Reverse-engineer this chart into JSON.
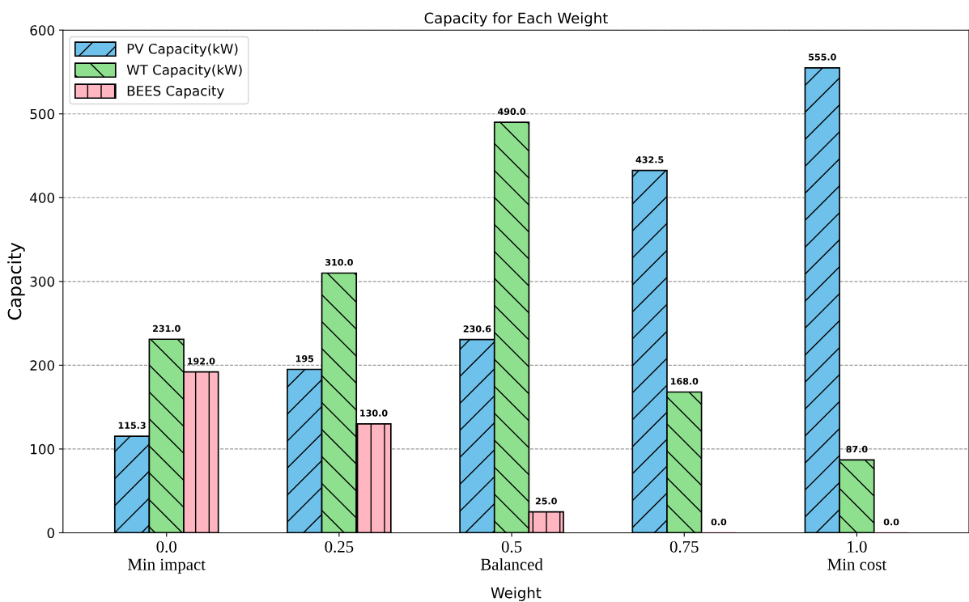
{
  "chart_data": {
    "type": "bar",
    "title": "Capacity for Each Weight",
    "xlabel": "Weight",
    "ylabel": "Capacity",
    "categories": [
      "0.0\nMin impact",
      "0.25",
      "0.5\nBalanced",
      "0.75",
      "1.0\nMin cost"
    ],
    "series": [
      {
        "name": "PV Capacity(kW)",
        "color": "#6ec1ea",
        "values": [
          115.3,
          195,
          230.6,
          432.5,
          555.0
        ],
        "value_labels": [
          "115.3",
          "195",
          "230.6",
          "432.5",
          "555.0"
        ]
      },
      {
        "name": "WT Capacity(kW)",
        "color": "#8ee08e",
        "values": [
          231.0,
          310.0,
          490.0,
          168.0,
          87.0
        ],
        "value_labels": [
          "231.0",
          "310.0",
          "490.0",
          "168.0",
          "87.0"
        ]
      },
      {
        "name": "BEES Capacity",
        "color": "#ffb6c1",
        "values": [
          192.0,
          130.0,
          25.0,
          0.0,
          0.0
        ],
        "value_labels": [
          "192.0",
          "130.0",
          "25.0",
          "0.0",
          "0.0"
        ]
      }
    ],
    "ylim": [
      0,
      600
    ],
    "yticks": [
      0,
      100,
      200,
      300,
      400,
      500,
      600
    ],
    "grid": "y",
    "legend": "top left"
  }
}
